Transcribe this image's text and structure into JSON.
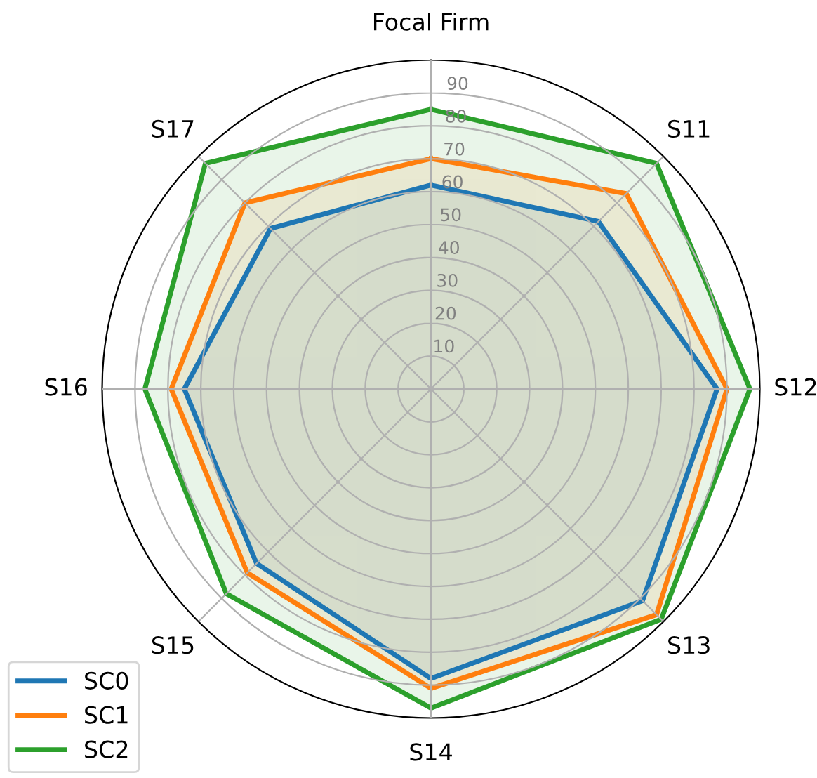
{
  "chart_data": {
    "type": "radar",
    "categories": [
      "Focal Firm",
      "S11",
      "S12",
      "S13",
      "S14",
      "S15",
      "S16",
      "S17"
    ],
    "series": [
      {
        "name": "SC0",
        "color": "#1f77b4",
        "values": [
          62,
          72,
          87,
          91,
          88,
          75,
          75,
          69
        ]
      },
      {
        "name": "SC1",
        "color": "#ff7f0e",
        "values": [
          70,
          84,
          90,
          97,
          91,
          79,
          79,
          80
        ]
      },
      {
        "name": "SC2",
        "color": "#2ca02c",
        "values": [
          85,
          97,
          97,
          99,
          97,
          88,
          87,
          97
        ]
      }
    ],
    "ylim": [
      0,
      100
    ],
    "yticks": [
      10,
      20,
      30,
      40,
      50,
      60,
      70,
      80,
      90
    ],
    "grid": true,
    "legend": "bottom left"
  }
}
